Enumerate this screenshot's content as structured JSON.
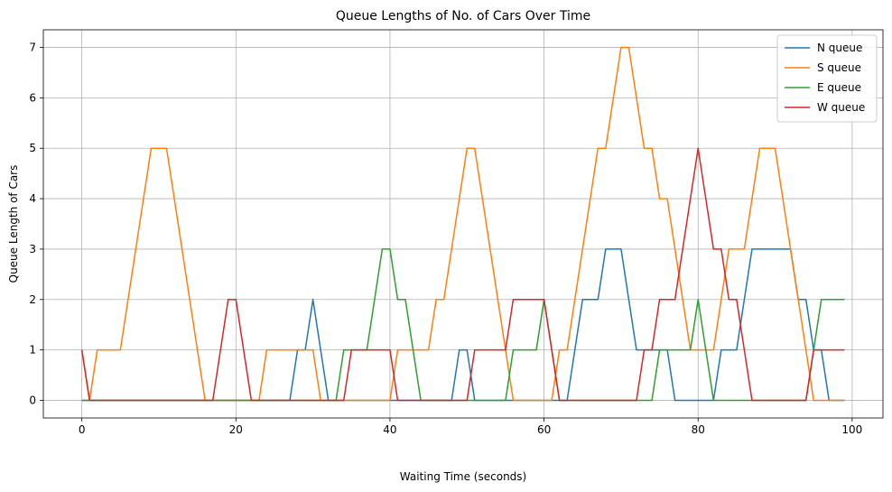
{
  "chart_data": {
    "type": "line",
    "title": "Queue Lengths of No. of Cars Over Time",
    "xlabel": "Waiting Time (seconds)",
    "ylabel": "Queue Length of Cars",
    "xlim": [
      -5,
      104
    ],
    "ylim": [
      -0.35,
      7.35
    ],
    "xticks": [
      0,
      20,
      40,
      60,
      80,
      100
    ],
    "yticks": [
      0,
      1,
      2,
      3,
      4,
      5,
      6,
      7
    ],
    "grid": true,
    "legend_position": "top-right",
    "series": [
      {
        "name": "N queue",
        "color": "#1f77b4",
        "values": [
          0,
          0,
          0,
          0,
          0,
          0,
          0,
          0,
          0,
          0,
          0,
          0,
          0,
          0,
          0,
          0,
          0,
          0,
          0,
          0,
          0,
          0,
          0,
          0,
          0,
          0,
          0,
          0,
          1,
          1,
          2,
          1,
          0,
          0,
          0,
          0,
          0,
          0,
          0,
          0,
          0,
          0,
          0,
          0,
          0,
          0,
          0,
          0,
          0,
          1,
          1,
          0,
          0,
          0,
          0,
          0,
          0,
          0,
          0,
          0,
          0,
          0,
          0,
          0,
          1,
          2,
          2,
          2,
          3,
          3,
          3,
          2,
          1,
          1,
          1,
          1,
          1,
          0,
          0,
          0,
          0,
          0,
          0,
          1,
          1,
          1,
          2,
          3,
          3,
          3,
          3,
          3,
          3,
          2,
          2,
          1,
          1,
          0,
          0,
          0
        ]
      },
      {
        "name": "S queue",
        "color": "#ff7f0e",
        "values": [
          1,
          0,
          1,
          1,
          1,
          1,
          2,
          3,
          4,
          5,
          5,
          5,
          4,
          3,
          2,
          1,
          0,
          0,
          0,
          0,
          0,
          0,
          0,
          0,
          1,
          1,
          1,
          1,
          1,
          1,
          1,
          0,
          0,
          0,
          0,
          0,
          0,
          0,
          0,
          0,
          0,
          1,
          1,
          1,
          1,
          1,
          2,
          2,
          3,
          4,
          5,
          5,
          4,
          3,
          2,
          1,
          0,
          0,
          0,
          0,
          0,
          0,
          1,
          1,
          2,
          3,
          4,
          5,
          5,
          6,
          7,
          7,
          6,
          5,
          5,
          4,
          4,
          3,
          2,
          1,
          1,
          1,
          1,
          2,
          3,
          3,
          3,
          4,
          5,
          5,
          5,
          4,
          3,
          2,
          1,
          0,
          0,
          0,
          0,
          0
        ]
      },
      {
        "name": "E queue",
        "color": "#2ca02c",
        "values": [
          0,
          0,
          0,
          0,
          0,
          0,
          0,
          0,
          0,
          0,
          0,
          0,
          0,
          0,
          0,
          0,
          0,
          0,
          0,
          0,
          0,
          0,
          0,
          0,
          0,
          0,
          0,
          0,
          0,
          0,
          0,
          0,
          0,
          0,
          1,
          1,
          1,
          1,
          2,
          3,
          3,
          2,
          2,
          1,
          0,
          0,
          0,
          0,
          0,
          0,
          0,
          0,
          0,
          0,
          0,
          0,
          1,
          1,
          1,
          1,
          2,
          1,
          0,
          0,
          0,
          0,
          0,
          0,
          0,
          0,
          0,
          0,
          0,
          0,
          0,
          1,
          1,
          1,
          1,
          1,
          2,
          1,
          0,
          0,
          0,
          0,
          0,
          0,
          0,
          0,
          0,
          0,
          0,
          0,
          0,
          1,
          2,
          2,
          2,
          2
        ]
      },
      {
        "name": "W queue",
        "color": "#d62728",
        "values": [
          1,
          0,
          0,
          0,
          0,
          0,
          0,
          0,
          0,
          0,
          0,
          0,
          0,
          0,
          0,
          0,
          0,
          0,
          1,
          2,
          2,
          1,
          0,
          0,
          0,
          0,
          0,
          0,
          0,
          0,
          0,
          0,
          0,
          0,
          0,
          1,
          1,
          1,
          1,
          1,
          1,
          0,
          0,
          0,
          0,
          0,
          0,
          0,
          0,
          0,
          0,
          1,
          1,
          1,
          1,
          1,
          2,
          2,
          2,
          2,
          2,
          1,
          0,
          0,
          0,
          0,
          0,
          0,
          0,
          0,
          0,
          0,
          0,
          1,
          1,
          2,
          2,
          2,
          3,
          4,
          5,
          4,
          3,
          3,
          2,
          2,
          1,
          0,
          0,
          0,
          0,
          0,
          0,
          0,
          0,
          1,
          1,
          1,
          1,
          1
        ]
      }
    ]
  }
}
